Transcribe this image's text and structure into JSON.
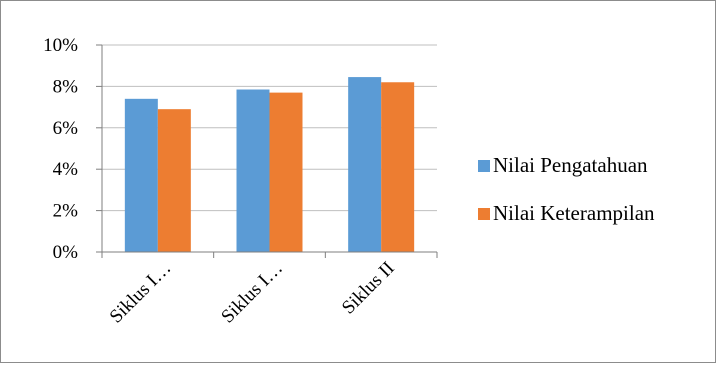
{
  "chart_data": {
    "type": "bar",
    "categories": [
      "Siklus I…",
      "Siklus I…",
      "Siklus II"
    ],
    "series": [
      {
        "name": "Nilai Pengatahuan",
        "values": [
          7.4,
          7.85,
          8.45
        ],
        "color": "#5B9BD5"
      },
      {
        "name": "Nilai Keterampilan",
        "values": [
          6.9,
          7.7,
          8.2
        ],
        "color": "#ED7D31"
      }
    ],
    "ylim": [
      0,
      10
    ],
    "yticks": [
      "0%",
      "2%",
      "4%",
      "6%",
      "8%",
      "10%"
    ],
    "title": "",
    "xlabel": "",
    "ylabel": "",
    "grid": true,
    "legend": "right",
    "colors": {
      "gridline": "#bfbfbf",
      "axis": "#7f7f7f"
    }
  }
}
